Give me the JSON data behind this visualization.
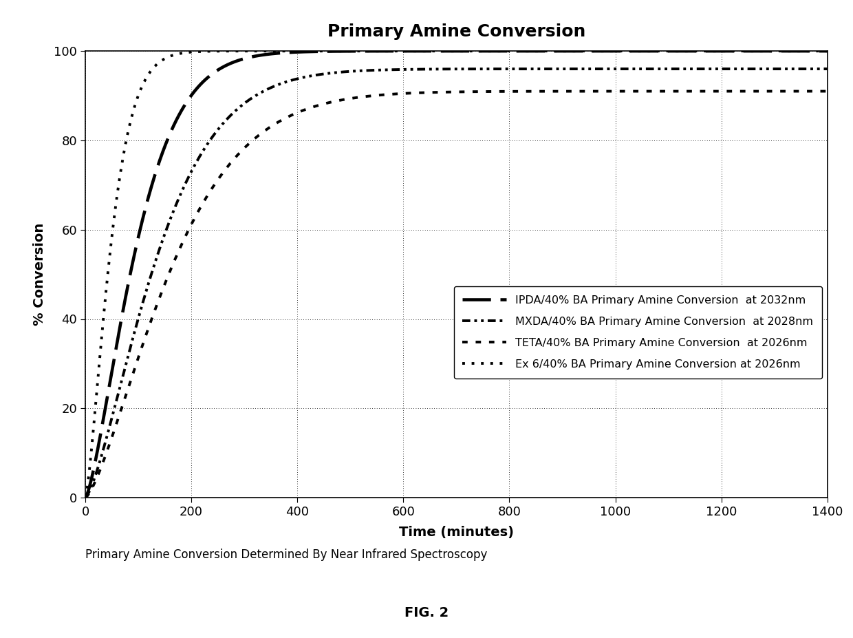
{
  "title": "Primary Amine Conversion",
  "xlabel": "Time (minutes)",
  "ylabel": "% Conversion",
  "xlim": [
    0,
    1400
  ],
  "ylim": [
    0,
    100
  ],
  "xticks": [
    0,
    200,
    400,
    600,
    800,
    1000,
    1200,
    1400
  ],
  "yticks": [
    0,
    20,
    40,
    60,
    80,
    100
  ],
  "caption": "Primary Amine Conversion Determined By Near Infrared Spectroscopy",
  "fig_label": "FIG. 2",
  "series": [
    {
      "label": "IPDA/40% BA Primary Amine Conversion  at 2032nm",
      "plateau": 100,
      "t_char": 110,
      "power": 1.4
    },
    {
      "label": "MXDA/40% BA Primary Amine Conversion  at 2028nm",
      "plateau": 96,
      "t_char": 155,
      "power": 1.4
    },
    {
      "label": "TETA/40% BA Primary Amine Conversion  at 2026nm",
      "plateau": 91,
      "t_char": 185,
      "power": 1.4
    },
    {
      "label": "Ex 6/40% BA Primary Amine Conversion at 2026nm",
      "plateau": 100,
      "t_char": 55,
      "power": 1.4
    }
  ],
  "background_color": "#ffffff",
  "title_fontsize": 18,
  "label_fontsize": 14,
  "tick_fontsize": 13,
  "legend_fontsize": 11.5
}
